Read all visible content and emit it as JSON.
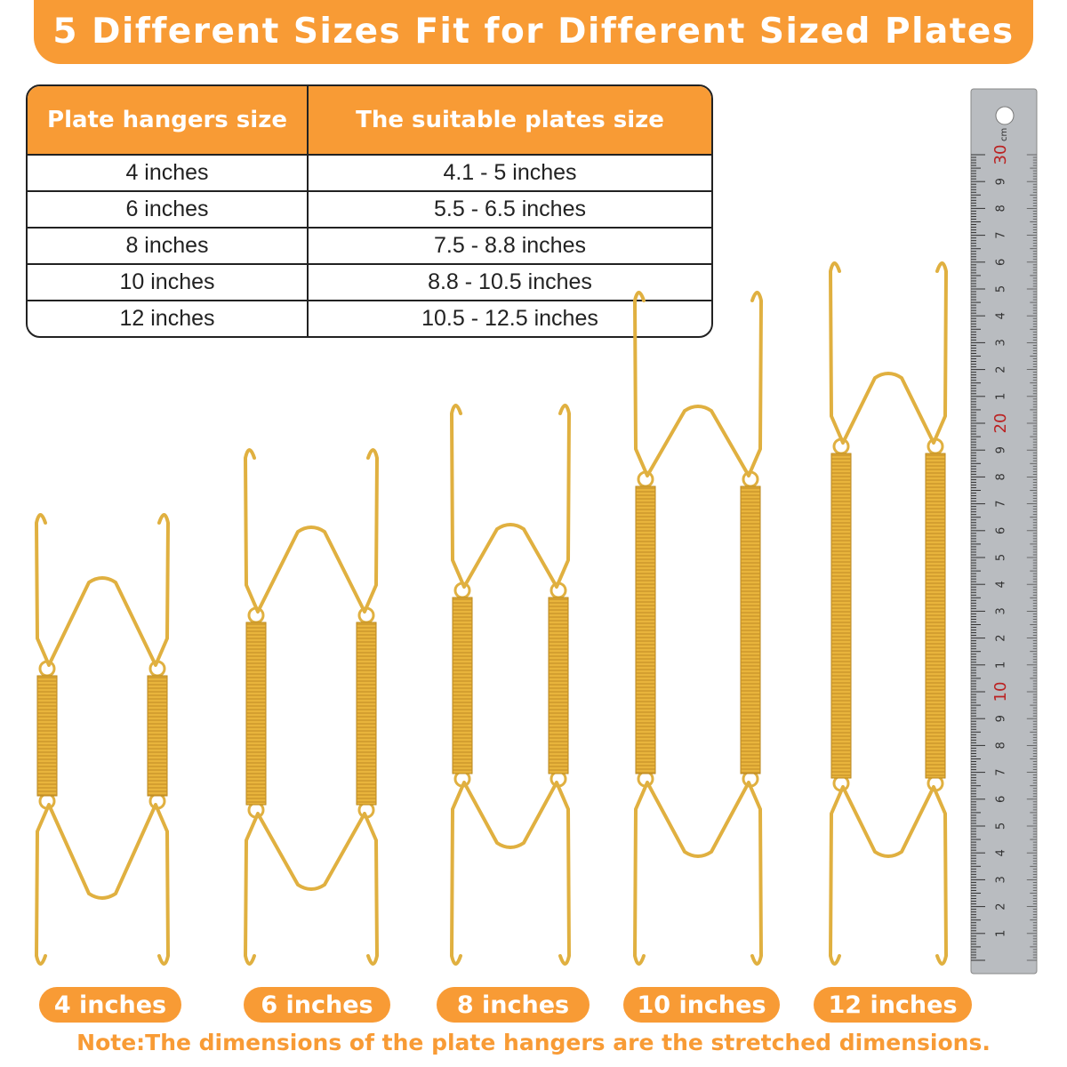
{
  "banner": {
    "title": "5 Different Sizes  Fit for Different Sized Plates"
  },
  "table": {
    "headers": [
      "Plate hangers size",
      "The suitable plates size"
    ],
    "rows": [
      [
        "4 inches",
        "4.1 - 5 inches"
      ],
      [
        "6 inches",
        "5.5 - 6.5 inches"
      ],
      [
        "8 inches",
        "7.5 - 8.8 inches"
      ],
      [
        "10 inches",
        "8.8 - 10.5 inches"
      ],
      [
        "12 inches",
        "10.5 - 12.5 inches"
      ]
    ]
  },
  "labels": [
    "4 inches",
    "6 inches",
    "8 inches",
    "10 inches",
    "12 inches"
  ],
  "note": "Note:The dimensions of the plate hangers are the stretched dimensions.",
  "ruler": {
    "unit": "cm",
    "labels": [
      "1",
      "2",
      "3",
      "4",
      "5",
      "6",
      "7",
      "8",
      "9",
      "10",
      "1",
      "2",
      "3",
      "4",
      "5",
      "6",
      "7",
      "8",
      "9",
      "20",
      "1",
      "2",
      "3",
      "4",
      "5",
      "6",
      "7",
      "8",
      "9",
      "30"
    ]
  },
  "colors": {
    "accent": "#F89B35",
    "gold": "#E0B040",
    "steel": "#b9bcc0"
  }
}
